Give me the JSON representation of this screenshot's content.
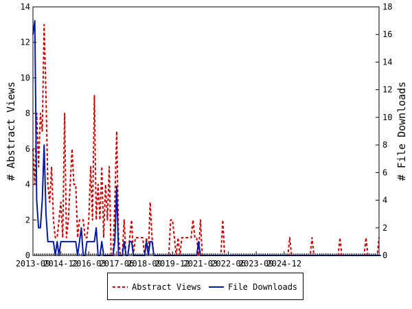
{
  "chart_data": {
    "type": "line",
    "xlabel": "",
    "ylabel": "# Abstract Views",
    "y2label": "# File Downloads",
    "ylim": [
      0,
      14
    ],
    "y2lim": [
      0,
      18
    ],
    "yticks": [
      0,
      2,
      4,
      6,
      8,
      10,
      12,
      14
    ],
    "y2ticks": [
      0,
      2,
      4,
      6,
      8,
      10,
      12,
      14,
      16,
      18
    ],
    "x_start": "2013-09",
    "x_end": "2025-05",
    "xtick_labels": [
      "2013-09",
      "2014-12",
      "2016-03",
      "2017-06",
      "2018-09",
      "2019-12",
      "2021-03",
      "2022-06",
      "2023-09",
      "2024-12"
    ],
    "legend_position": "bottom",
    "series": [
      {
        "name": "Abstract Views",
        "axis": "left",
        "color": "#cc0000",
        "style": "dashed",
        "values": [
          6,
          4,
          8,
          5,
          8,
          7,
          13,
          9,
          4,
          3,
          5,
          2,
          1,
          1,
          2,
          3,
          1,
          8,
          1,
          2,
          4,
          6,
          4,
          4,
          1,
          2,
          2,
          2,
          1,
          1,
          2,
          5,
          2,
          9,
          2,
          4,
          2,
          5,
          1,
          4,
          2,
          5,
          0,
          0,
          3,
          7,
          1,
          0,
          0,
          2,
          0,
          0,
          1,
          2,
          0,
          1,
          1,
          1,
          1,
          1,
          0,
          1,
          0,
          3,
          1,
          0,
          0,
          0,
          0,
          0,
          0,
          0,
          0,
          0,
          2,
          2,
          1,
          0,
          1,
          0,
          1,
          1,
          1,
          1,
          1,
          1,
          2,
          1,
          1,
          0,
          2,
          0,
          0,
          0,
          0,
          0,
          0,
          0,
          0,
          0,
          0,
          0,
          2,
          0,
          0,
          0,
          0,
          0,
          0,
          0,
          0,
          0,
          0,
          0,
          0,
          0,
          0,
          0,
          0,
          0,
          0,
          0,
          0,
          0,
          0,
          0,
          0,
          0,
          0,
          0,
          0,
          0,
          0,
          0,
          0,
          0,
          0,
          0,
          1,
          0,
          0,
          0,
          0,
          0,
          0,
          0,
          0,
          0,
          0,
          0,
          1,
          0,
          0,
          0,
          0,
          0,
          0,
          0,
          0,
          0,
          0,
          0,
          0,
          0,
          0,
          1,
          0,
          0,
          0,
          0,
          0,
          0,
          0,
          0,
          0,
          0,
          0,
          0,
          0,
          1,
          0,
          0,
          0,
          0,
          0,
          0,
          1
        ]
      },
      {
        "name": "File Downloads",
        "axis": "right",
        "color": "#001aa6",
        "style": "solid",
        "values": [
          16,
          17,
          4,
          2,
          2,
          4,
          8,
          3,
          1,
          1,
          1,
          1,
          0,
          1,
          0,
          1,
          1,
          1,
          1,
          1,
          1,
          1,
          1,
          1,
          0,
          1,
          2,
          0,
          0,
          1,
          1,
          1,
          1,
          1,
          2,
          0,
          0,
          1,
          0,
          0,
          0,
          0,
          0,
          0,
          1,
          5,
          0,
          0,
          0,
          1,
          0,
          0,
          1,
          1,
          0,
          0,
          0,
          0,
          0,
          0,
          0,
          1,
          0,
          1,
          1,
          0,
          0,
          0,
          0,
          0,
          0,
          0,
          0,
          0,
          0,
          0,
          0,
          0,
          0,
          0,
          0,
          0,
          0,
          0,
          0,
          0,
          0,
          0,
          0,
          1,
          0,
          0,
          0,
          0,
          0,
          0,
          0,
          0,
          0,
          0,
          0,
          0,
          0,
          0,
          0,
          0,
          0,
          0,
          0,
          0,
          0,
          0,
          0,
          0,
          0,
          0,
          0,
          0,
          0,
          0,
          0,
          0,
          0,
          0,
          0,
          0,
          0,
          0,
          0,
          0,
          0,
          0,
          0,
          0,
          0,
          0,
          0,
          0,
          0,
          0,
          0,
          0,
          0,
          0,
          0,
          0,
          0,
          0,
          0,
          0,
          0,
          0,
          0,
          0,
          0,
          0,
          0,
          0,
          0,
          0,
          0,
          0,
          0,
          0,
          0,
          0,
          0,
          0,
          0,
          0,
          0,
          0,
          0,
          0,
          0,
          0,
          0,
          0,
          0,
          0,
          0,
          0,
          0,
          0,
          0,
          0,
          0,
          0
        ]
      }
    ]
  }
}
